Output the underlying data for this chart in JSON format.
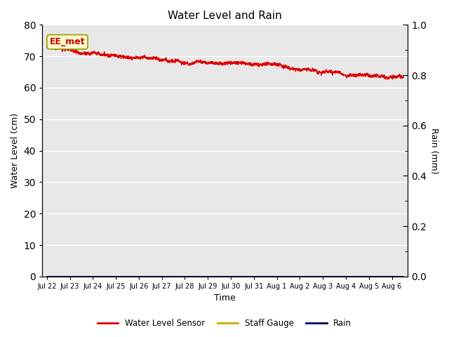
{
  "title": "Water Level and Rain",
  "xlabel": "Time",
  "ylabel_left": "Water Level (cm)",
  "ylabel_right": "Rain (mm)",
  "annotation_text": "EE_met",
  "plot_bg_color": "#e8e8e8",
  "ylim_left": [
    0,
    80
  ],
  "ylim_right": [
    0.0,
    1.0
  ],
  "yticks_left": [
    0,
    10,
    20,
    30,
    40,
    50,
    60,
    70,
    80
  ],
  "yticks_right": [
    0.0,
    0.2,
    0.4,
    0.6,
    0.8,
    1.0
  ],
  "yticks_right_minor": [
    0.1,
    0.3,
    0.5,
    0.7,
    0.9
  ],
  "x_tick_labels": [
    "Jul 22",
    "Jul 23",
    "Jul 24",
    "Jul 25",
    "Jul 26",
    "Jul 27",
    "Jul 28",
    "Jul 29",
    "Jul 30",
    "Jul 31",
    "Aug 1",
    "Aug 2",
    "Aug 3",
    "Aug 4",
    "Aug 5",
    "Aug 6"
  ],
  "water_level_color": "#dd0000",
  "staff_gauge_color": "#ccaa00",
  "rain_color": "#000066",
  "legend_labels": [
    "Water Level Sensor",
    "Staff Gauge",
    "Rain"
  ],
  "legend_colors": [
    "#dd0000",
    "#ccaa00",
    "#000066"
  ]
}
